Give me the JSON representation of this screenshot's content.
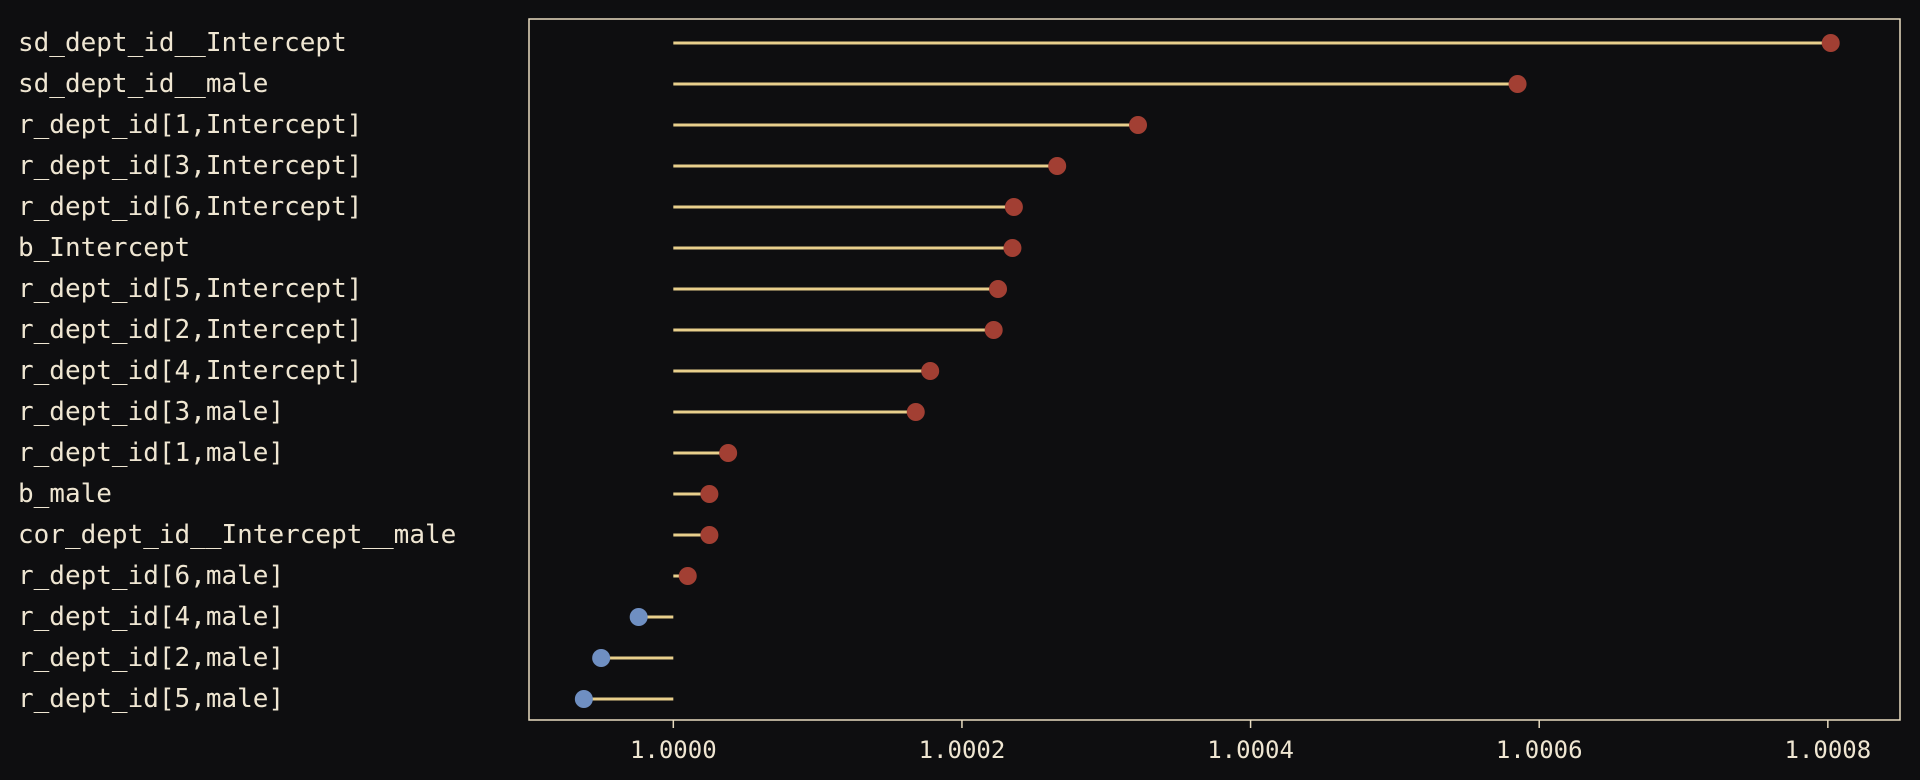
{
  "chart_data": {
    "type": "lollipop",
    "title": "",
    "xlabel": "",
    "ylabel": "",
    "baseline": 1.0,
    "xlim": [
      0.9999,
      1.00085
    ],
    "xticks": [
      1.0,
      1.0002,
      1.0004,
      1.0006,
      1.0008
    ],
    "xtick_labels": [
      "1.0000",
      "1.0002",
      "1.0004",
      "1.0006",
      "1.0008"
    ],
    "grid": false,
    "colors": {
      "background": "#0e0e10",
      "panel": "#0e0e10",
      "frame": "#e8dcc0",
      "text": "#efe6d2",
      "stem": "#e8cf8c",
      "above_baseline": "#a23f33",
      "below_baseline": "#6f8fc2"
    },
    "categories": [
      "sd_dept_id__Intercept",
      "sd_dept_id__male",
      "r_dept_id[1,Intercept]",
      "r_dept_id[3,Intercept]",
      "r_dept_id[6,Intercept]",
      "b_Intercept",
      "r_dept_id[5,Intercept]",
      "r_dept_id[2,Intercept]",
      "r_dept_id[4,Intercept]",
      "r_dept_id[3,male]",
      "r_dept_id[1,male]",
      "b_male",
      "cor_dept_id__Intercept__male",
      "r_dept_id[6,male]",
      "r_dept_id[4,male]",
      "r_dept_id[2,male]",
      "r_dept_id[5,male]"
    ],
    "values": [
      1.000802,
      1.000585,
      1.000322,
      1.000266,
      1.000236,
      1.000235,
      1.000225,
      1.000222,
      1.000178,
      1.000168,
      1.000038,
      1.000025,
      1.000025,
      1.00001,
      0.999976,
      0.99995,
      0.999938
    ]
  }
}
